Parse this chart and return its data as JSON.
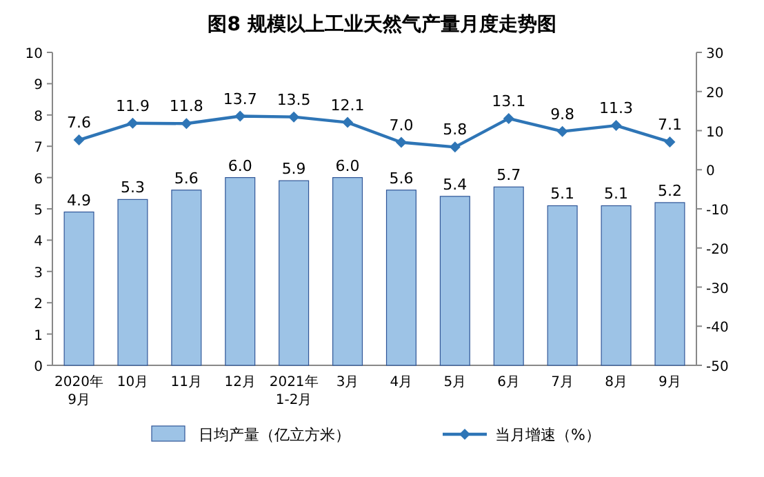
{
  "chart_data": {
    "type": "bar",
    "title": "图8 规模以上工业天然气产量月度走势图",
    "categories": [
      "2020年\n9月",
      "10月",
      "11月",
      "12月",
      "2021年\n1-2月",
      "3月",
      "4月",
      "5月",
      "6月",
      "7月",
      "8月",
      "9月"
    ],
    "series": [
      {
        "name": "日均产量（亿立方米）",
        "color": "#9dc3e6",
        "values": [
          4.9,
          5.3,
          5.6,
          6.0,
          5.9,
          6.0,
          5.6,
          5.4,
          5.7,
          5.1,
          5.1,
          5.2
        ],
        "value_labels": [
          "4.9",
          "5.3",
          "5.6",
          "6.0",
          "5.9",
          "6.0",
          "5.6",
          "5.4",
          "5.7",
          "5.1",
          "5.1",
          "5.2"
        ]
      },
      {
        "name": "当月增速（%）",
        "type": "line",
        "axis": "y2",
        "color": "#2e75b6",
        "values": [
          7.6,
          11.9,
          11.8,
          13.7,
          13.5,
          12.1,
          7.0,
          5.8,
          13.1,
          9.8,
          11.3,
          7.1
        ],
        "value_labels": [
          "7.6",
          "11.9",
          "11.8",
          "13.7",
          "13.5",
          "12.1",
          "7.0",
          "5.8",
          "13.1",
          "9.8",
          "11.3",
          "7.1"
        ]
      }
    ],
    "ylim": [
      0,
      10
    ],
    "yticks": [
      0,
      1,
      2,
      3,
      4,
      5,
      6,
      7,
      8,
      9,
      10
    ],
    "y2lim": [
      -50,
      30
    ],
    "y2ticks": [
      -50,
      -40,
      -30,
      -20,
      -10,
      0,
      10,
      20,
      30
    ],
    "grid": false,
    "legend": "bottom",
    "marker": "diamond",
    "line_style": "solid"
  }
}
